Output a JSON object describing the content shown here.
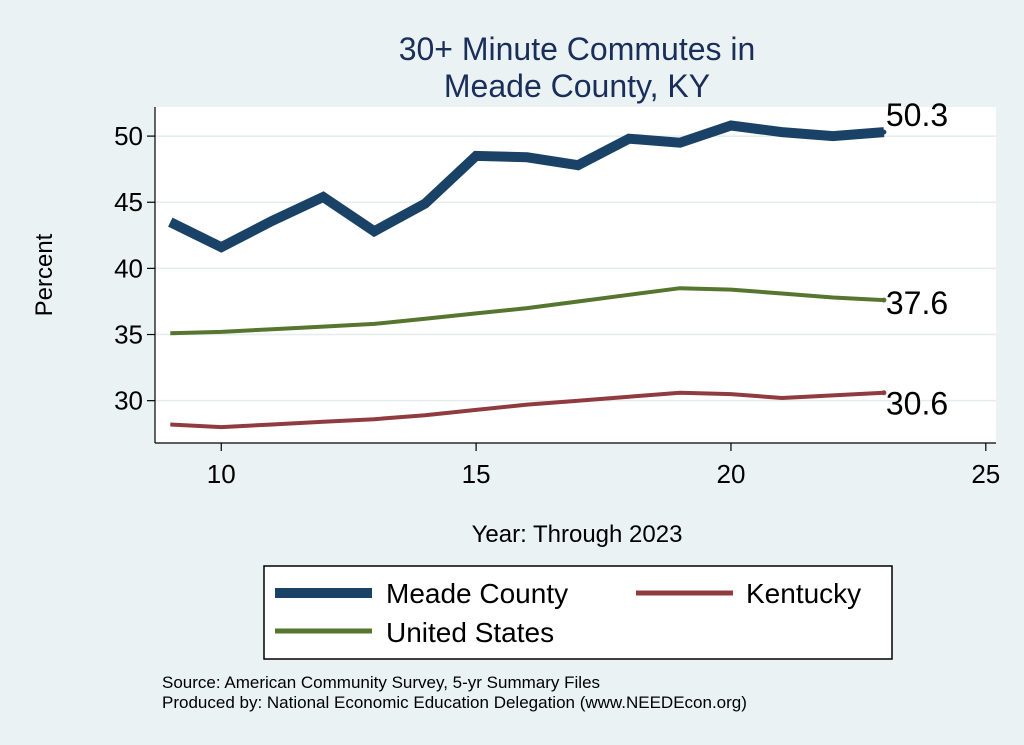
{
  "chart_data": {
    "type": "line",
    "title_lines": [
      "30+ Minute Commutes in",
      "Meade County, KY"
    ],
    "xlabel": "Year: Through 2023",
    "ylabel": "Percent",
    "xlim": [
      8.7,
      25.2
    ],
    "ylim": [
      26.8,
      52.2
    ],
    "x_ticks": [
      10,
      15,
      20,
      25
    ],
    "y_ticks": [
      30,
      35,
      40,
      45,
      50
    ],
    "grid": true,
    "legend_position": "bottom",
    "x": [
      9,
      10,
      11,
      12,
      13,
      14,
      15,
      16,
      17,
      18,
      19,
      20,
      21,
      22,
      23
    ],
    "series": [
      {
        "name": "Meade County",
        "color": "#1a4266",
        "width": 10,
        "values": [
          43.5,
          41.6,
          43.6,
          45.4,
          42.8,
          44.9,
          48.5,
          48.4,
          47.8,
          49.8,
          49.5,
          50.8,
          50.3,
          50.0,
          50.3
        ],
        "end_label": "50.3"
      },
      {
        "name": "Kentucky",
        "color": "#903b3f",
        "width": 4,
        "values": [
          28.2,
          28.0,
          28.2,
          28.4,
          28.6,
          28.9,
          29.3,
          29.7,
          30.0,
          30.3,
          30.6,
          30.5,
          30.2,
          30.4,
          30.6
        ],
        "end_label": "30.6"
      },
      {
        "name": "United States",
        "color": "#56752e",
        "width": 4,
        "values": [
          35.1,
          35.2,
          35.4,
          35.6,
          35.8,
          36.2,
          36.6,
          37.0,
          37.5,
          38.0,
          38.5,
          38.4,
          38.1,
          37.8,
          37.6
        ],
        "end_label": "37.6"
      }
    ]
  },
  "source_lines": [
    "Source: American Community Survey, 5-yr Summary Files",
    "Produced by: National Economic Education Delegation (www.NEEDEcon.org)"
  ]
}
